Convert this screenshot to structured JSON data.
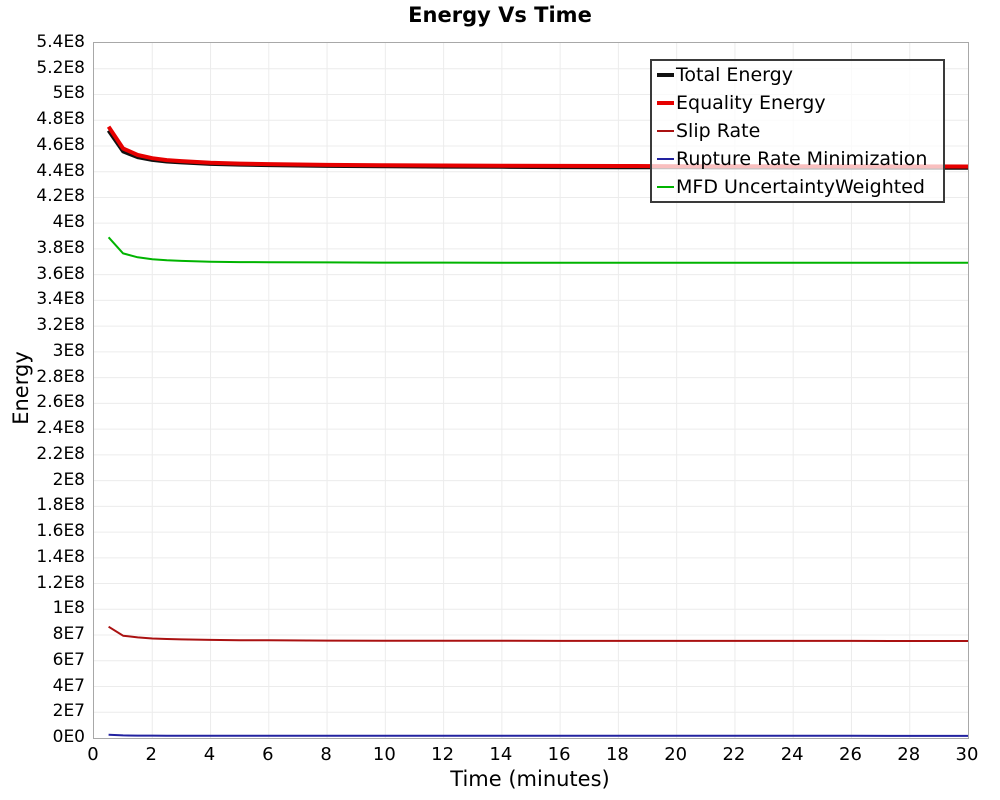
{
  "title": "Energy Vs Time",
  "axes": {
    "x_label": "Time (minutes)",
    "y_label": "Energy"
  },
  "colors": {
    "grid": "#ececec",
    "plot_border": "#a8a8a8",
    "legend_border": "#3a3a3a",
    "background": "#ffffff"
  },
  "chart_data": {
    "type": "line",
    "title": "Energy Vs Time",
    "xlabel": "Time (minutes)",
    "ylabel": "Energy",
    "xlim": [
      0,
      30
    ],
    "ylim": [
      0,
      540000000
    ],
    "grid": true,
    "legend_position": "top-right",
    "x_ticks": [
      "0",
      "2",
      "4",
      "6",
      "8",
      "10",
      "12",
      "14",
      "16",
      "18",
      "20",
      "22",
      "24",
      "26",
      "28",
      "30"
    ],
    "x_tick_values": [
      0,
      2,
      4,
      6,
      8,
      10,
      12,
      14,
      16,
      18,
      20,
      22,
      24,
      26,
      28,
      30
    ],
    "y_ticks": [
      "0E0",
      "2E7",
      "4E7",
      "6E7",
      "8E7",
      "1E8",
      "1.2E8",
      "1.4E8",
      "1.6E8",
      "1.8E8",
      "2E8",
      "2.2E8",
      "2.4E8",
      "2.6E8",
      "2.8E8",
      "3E8",
      "3.2E8",
      "3.4E8",
      "3.6E8",
      "3.8E8",
      "4E8",
      "4.2E8",
      "4.4E8",
      "4.6E8",
      "4.8E8",
      "5E8",
      "5.2E8",
      "5.4E8"
    ],
    "y_tick_step": 20000000,
    "x": [
      0.5,
      1,
      1.5,
      2,
      2.5,
      3,
      4,
      5,
      6,
      8,
      10,
      12,
      14,
      16,
      18,
      20,
      22,
      24,
      26,
      28,
      30
    ],
    "series": [
      {
        "name": "Total Energy",
        "color": "#111111",
        "stroke_width": 4,
        "values": [
          472000000,
          455800000,
          451300000,
          449200000,
          447900000,
          447200000,
          446100000,
          445500000,
          445100000,
          444500000,
          444200000,
          444000000,
          443800000,
          443600000,
          443500000,
          443400000,
          443300000,
          443200000,
          443100000,
          443050000,
          443000000
        ]
      },
      {
        "name": "Equality Energy",
        "color": "#e60000",
        "stroke_width": 4,
        "values": [
          475000000,
          458000000,
          453000000,
          450500000,
          449000000,
          448200000,
          447000000,
          446300000,
          445900000,
          445300000,
          445000000,
          444800000,
          444600000,
          444500000,
          444400000,
          444300000,
          444250000,
          444200000,
          444150000,
          444100000,
          444050000
        ]
      },
      {
        "name": "Slip Rate",
        "color": "#aa1111",
        "stroke_width": 2,
        "values": [
          86500000,
          79500000,
          78200000,
          77300000,
          76900000,
          76600000,
          76200000,
          76000000,
          75900000,
          75700000,
          75600000,
          75550000,
          75500000,
          75480000,
          75460000,
          75440000,
          75430000,
          75420000,
          75410000,
          75405000,
          75400000
        ]
      },
      {
        "name": "Rupture Rate Minimization",
        "color": "#2222a0",
        "stroke_width": 2,
        "values": [
          2500000,
          2000000,
          1900000,
          1850000,
          1820000,
          1800000,
          1780000,
          1760000,
          1750000,
          1730000,
          1720000,
          1710000,
          1700000,
          1695000,
          1690000,
          1685000,
          1680000,
          1675000,
          1672000,
          1670000,
          1668000
        ]
      },
      {
        "name": "MFD UncertaintyWeighted",
        "color": "#00b400",
        "stroke_width": 2,
        "values": [
          389000000,
          376500000,
          373500000,
          372000000,
          371200000,
          370700000,
          370100000,
          369800000,
          369700000,
          369500000,
          369400000,
          369350000,
          369300000,
          369280000,
          369260000,
          369240000,
          369230000,
          369220000,
          369210000,
          369205000,
          369200000
        ]
      }
    ]
  }
}
